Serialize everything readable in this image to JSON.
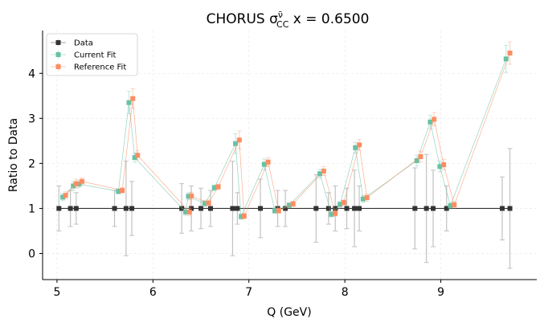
{
  "chart_data": {
    "type": "line",
    "title_main": "CHORUS σ",
    "title_sup": "ν̄",
    "title_sub": "CC",
    "title_rest": " x = 0.6500",
    "xlabel": "Q (GeV)",
    "ylabel": "Ratio to Data",
    "xlim": [
      4.85,
      10.0
    ],
    "ylim": [
      -0.58,
      4.95
    ],
    "xticks": [
      5,
      6,
      7,
      8,
      9
    ],
    "yticks": [
      0,
      1,
      2,
      3,
      4
    ],
    "grid": true,
    "legend_position": "top-left",
    "colors": {
      "data": "#333333",
      "current": "#66c2a5",
      "reference": "#fc8d62"
    },
    "series": [
      {
        "name": "Data",
        "color": "#333333",
        "x": [
          5.02,
          5.14,
          5.2,
          5.6,
          5.72,
          5.78,
          6.3,
          6.4,
          6.5,
          6.6,
          6.83,
          6.88,
          7.12,
          7.3,
          7.38,
          7.7,
          7.83,
          7.9,
          8.02,
          8.1,
          8.15,
          8.73,
          8.85,
          8.92,
          9.06,
          9.64,
          9.72
        ],
        "y": [
          1.0,
          1.0,
          1.0,
          1.0,
          1.0,
          1.0,
          1.0,
          1.0,
          1.0,
          1.0,
          1.0,
          1.0,
          1.0,
          1.0,
          1.0,
          1.0,
          1.0,
          1.0,
          1.0,
          1.0,
          1.0,
          1.0,
          1.0,
          1.0,
          1.0,
          1.0,
          1.0
        ],
        "err": [
          0.5,
          0.4,
          0.35,
          0.4,
          1.05,
          0.6,
          0.55,
          0.5,
          0.45,
          0.4,
          1.05,
          0.35,
          0.65,
          0.4,
          0.4,
          0.75,
          0.35,
          0.5,
          0.45,
          0.85,
          0.5,
          0.9,
          1.2,
          0.85,
          0.5,
          0.7,
          1.33
        ]
      },
      {
        "name": "Current Fit",
        "color": "#66c2a5",
        "x": [
          5.06,
          5.17,
          5.23,
          5.64,
          5.75,
          5.81,
          6.34,
          6.37,
          6.54,
          6.64,
          6.86,
          6.92,
          7.16,
          7.27,
          7.42,
          7.74,
          7.86,
          7.95,
          8.11,
          8.19,
          8.75,
          8.89,
          8.99,
          9.1,
          9.68
        ],
        "y": [
          1.25,
          1.5,
          1.54,
          1.38,
          3.35,
          2.13,
          0.92,
          1.27,
          1.11,
          1.46,
          2.44,
          0.82,
          1.98,
          0.95,
          1.07,
          1.77,
          0.87,
          1.09,
          2.35,
          1.21,
          2.06,
          2.92,
          1.93,
          1.06,
          4.32
        ],
        "err": [
          0.08,
          0.1,
          0.08,
          0.06,
          0.25,
          0.1,
          0.08,
          0.08,
          0.07,
          0.06,
          0.22,
          0.06,
          0.12,
          0.06,
          0.06,
          0.1,
          0.06,
          0.06,
          0.12,
          0.08,
          0.12,
          0.15,
          0.12,
          0.07,
          0.3
        ]
      },
      {
        "name": "Reference Fit",
        "color": "#fc8d62",
        "x": [
          5.09,
          5.2,
          5.26,
          5.68,
          5.79,
          5.84,
          6.38,
          6.4,
          6.58,
          6.68,
          6.9,
          6.95,
          7.2,
          7.31,
          7.46,
          7.78,
          7.9,
          7.99,
          8.15,
          8.23,
          8.79,
          8.93,
          9.03,
          9.14,
          9.72
        ],
        "y": [
          1.29,
          1.55,
          1.6,
          1.4,
          3.44,
          2.18,
          0.92,
          1.28,
          1.12,
          1.48,
          2.52,
          0.83,
          2.03,
          0.95,
          1.1,
          1.83,
          0.89,
          1.13,
          2.41,
          1.24,
          2.15,
          2.98,
          1.97,
          1.08,
          4.45
        ],
        "err": [
          0.08,
          0.1,
          0.08,
          0.06,
          0.22,
          0.1,
          0.08,
          0.08,
          0.07,
          0.06,
          0.2,
          0.06,
          0.1,
          0.06,
          0.06,
          0.1,
          0.06,
          0.06,
          0.12,
          0.08,
          0.12,
          0.15,
          0.12,
          0.07,
          0.25
        ]
      }
    ]
  }
}
